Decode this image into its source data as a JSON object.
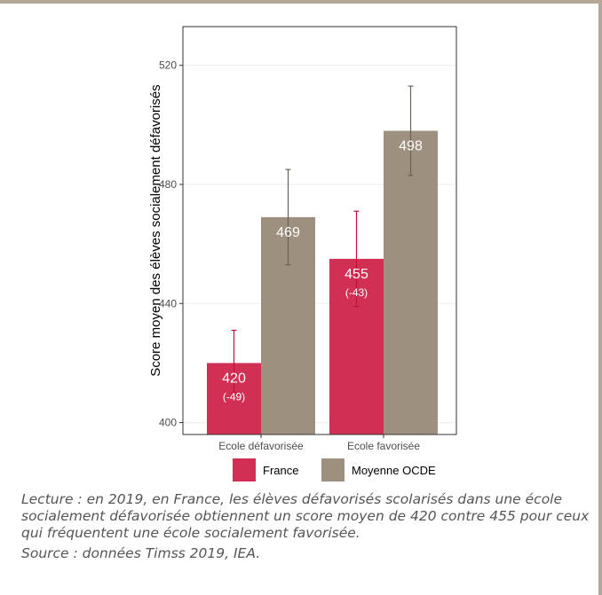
{
  "chart_data": {
    "type": "bar",
    "ylabel": "Score moyen des élèves socialement défavorisés",
    "xlabel": "",
    "ylim": [
      396,
      533
    ],
    "yticks": [
      400,
      440,
      480,
      520
    ],
    "categories": [
      "Ecole défavorisée",
      "Ecole favorisée"
    ],
    "grid": true,
    "legend_position": "bottom",
    "series": [
      {
        "name": "France",
        "color": "#d12f54",
        "errorbar_color": "#c00f3a",
        "values": [
          420,
          455
        ],
        "error_low": [
          410,
          439
        ],
        "error_high": [
          431,
          471
        ],
        "value_labels": [
          "420",
          "455"
        ],
        "sub_labels": [
          "(-49)",
          "(-43)"
        ]
      },
      {
        "name": "Moyenne OCDE",
        "color": "#9e907e",
        "errorbar_color": "#6e6253",
        "values": [
          469,
          498
        ],
        "error_low": [
          453,
          483
        ],
        "error_high": [
          485,
          513
        ],
        "value_labels": [
          "469",
          "498"
        ],
        "sub_labels": [
          "",
          ""
        ]
      }
    ]
  },
  "caption": {
    "lecture": "Lecture : en 2019, en France, les élèves défavorisés scolarisés dans une école socialement défavorisée obtiennent un score moyen de 420 contre 455 pour ceux qui fréquentent une école socialement favorisée.",
    "source": "Source : données Timss 2019, IEA."
  }
}
